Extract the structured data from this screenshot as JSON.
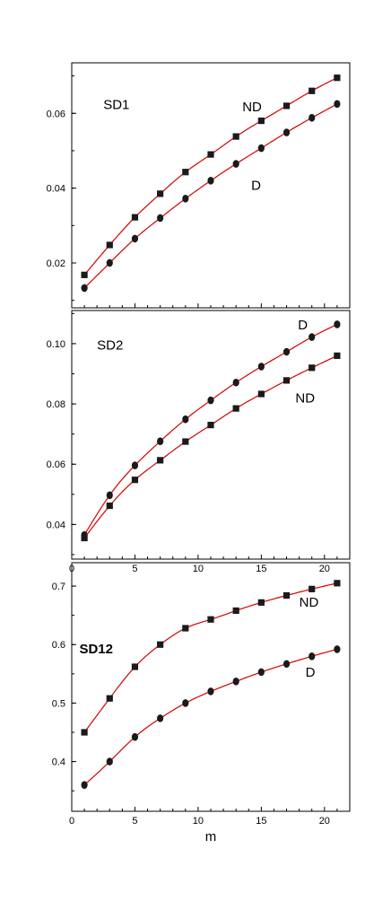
{
  "chart_data": [
    {
      "type": "line",
      "title": "SD1",
      "title_bold": false,
      "xlim": [
        0,
        22
      ],
      "ylim": [
        0.008,
        0.0735
      ],
      "xticks": [
        0,
        5,
        10,
        15,
        20
      ],
      "yticks": [
        0.02,
        0.04,
        0.06
      ],
      "ytick_labels": [
        "0.02",
        "0.04",
        "0.06"
      ],
      "show_x_tick_labels": false,
      "xlabel": "",
      "series": [
        {
          "name": "ND",
          "marker": "square",
          "x": [
            1,
            3,
            5,
            7,
            9,
            11,
            13,
            15,
            17,
            19,
            21
          ],
          "y": [
            0.0168,
            0.0248,
            0.0322,
            0.0385,
            0.0443,
            0.049,
            0.0538,
            0.058,
            0.062,
            0.066,
            0.0695
          ]
        },
        {
          "name": "D",
          "marker": "circle",
          "x": [
            1,
            3,
            5,
            7,
            9,
            11,
            13,
            15,
            17,
            19,
            21
          ],
          "y": [
            0.0133,
            0.02,
            0.0265,
            0.032,
            0.0372,
            0.042,
            0.0465,
            0.0507,
            0.0549,
            0.0588,
            0.0625
          ]
        }
      ],
      "annotations": [
        {
          "text": "ND",
          "x": 13.5,
          "y": 0.0605
        },
        {
          "text": "D",
          "x": 14.2,
          "y": 0.0395
        }
      ],
      "title_pos": [
        2.5,
        0.0612
      ]
    },
    {
      "type": "line",
      "title": "SD2",
      "title_bold": false,
      "xlim": [
        0,
        22
      ],
      "ylim": [
        0.0285,
        0.111
      ],
      "xticks": [
        0,
        5,
        10,
        15,
        20
      ],
      "yticks": [
        0.04,
        0.06,
        0.08,
        0.1
      ],
      "ytick_labels": [
        "0.04",
        "0.06",
        "0.08",
        "0.10"
      ],
      "show_x_tick_labels": true,
      "xlabel": "",
      "series": [
        {
          "name": "D",
          "marker": "circle",
          "x": [
            1,
            3,
            5,
            7,
            9,
            11,
            13,
            15,
            17,
            19,
            21
          ],
          "y": [
            0.0365,
            0.0497,
            0.0596,
            0.0676,
            0.0749,
            0.0812,
            0.0871,
            0.0924,
            0.0973,
            0.1022,
            0.1064
          ]
        },
        {
          "name": "ND",
          "marker": "square",
          "x": [
            1,
            3,
            5,
            7,
            9,
            11,
            13,
            15,
            17,
            19,
            21
          ],
          "y": [
            0.0355,
            0.0462,
            0.0548,
            0.0613,
            0.0675,
            0.073,
            0.0785,
            0.0833,
            0.0878,
            0.092,
            0.096
          ]
        }
      ],
      "annotations": [
        {
          "text": "D",
          "x": 17.9,
          "y": 0.1048
        },
        {
          "text": "ND",
          "x": 17.7,
          "y": 0.0805
        }
      ],
      "title_pos": [
        2.0,
        0.098
      ]
    },
    {
      "type": "line",
      "title": "SD12",
      "title_bold": true,
      "xlim": [
        0,
        22
      ],
      "ylim": [
        0.315,
        0.74
      ],
      "xticks": [
        0,
        5,
        10,
        15,
        20
      ],
      "yticks": [
        0.4,
        0.5,
        0.6,
        0.7
      ],
      "ytick_labels": [
        "0.4",
        "0.5",
        "0.6",
        "0.7"
      ],
      "show_x_tick_labels": true,
      "xlabel": "m",
      "series": [
        {
          "name": "ND",
          "marker": "square",
          "x": [
            1,
            3,
            5,
            7,
            9,
            11,
            13,
            15,
            17,
            19,
            21
          ],
          "y": [
            0.45,
            0.508,
            0.562,
            0.6,
            0.628,
            0.643,
            0.658,
            0.672,
            0.684,
            0.695,
            0.705
          ]
        },
        {
          "name": "D",
          "marker": "circle",
          "x": [
            1,
            3,
            5,
            7,
            9,
            11,
            13,
            15,
            17,
            19,
            21
          ],
          "y": [
            0.36,
            0.4,
            0.442,
            0.474,
            0.5,
            0.52,
            0.537,
            0.553,
            0.567,
            0.58,
            0.592
          ]
        }
      ],
      "annotations": [
        {
          "text": "ND",
          "x": 18.0,
          "y": 0.665
        },
        {
          "text": "D",
          "x": 18.5,
          "y": 0.545
        }
      ],
      "title_pos": [
        0.6,
        0.585
      ]
    }
  ],
  "colors": {
    "line": "#d40000",
    "marker": "#1a1a1a",
    "axis": "#000000"
  }
}
